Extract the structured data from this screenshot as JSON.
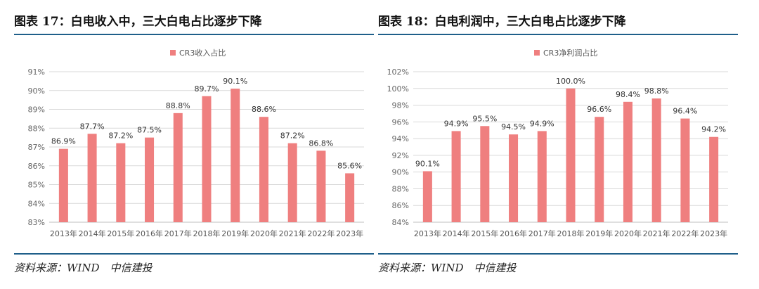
{
  "chart_data": [
    {
      "type": "bar",
      "figure_title": "图表 17：白电收入中，三大白电占比逐步下降",
      "legend": "CR3收入占比",
      "categories": [
        "2013年",
        "2014年",
        "2015年",
        "2016年",
        "2017年",
        "2018年",
        "2019年",
        "2020年",
        "2021年",
        "2022年",
        "2023年"
      ],
      "values": [
        86.9,
        87.7,
        87.2,
        87.5,
        88.8,
        89.7,
        90.1,
        88.6,
        87.2,
        86.8,
        85.6
      ],
      "value_labels": [
        "86.9%",
        "87.7%",
        "87.2%",
        "87.5%",
        "88.8%",
        "89.7%",
        "90.1%",
        "88.6%",
        "87.2%",
        "86.8%",
        "85.6%"
      ],
      "yticks": [
        83,
        84,
        85,
        86,
        87,
        88,
        89,
        90,
        91
      ],
      "ytick_labels": [
        "83%",
        "84%",
        "85%",
        "86%",
        "87%",
        "88%",
        "89%",
        "90%",
        "91%"
      ],
      "ylim": [
        83,
        91
      ],
      "source": "资料来源：WIND　中信建投",
      "bar_color": "#ef7f7f"
    },
    {
      "type": "bar",
      "figure_title": "图表 18：白电利润中，三大白电占比逐步下降",
      "legend": "CR3净利润占比",
      "categories": [
        "2013年",
        "2014年",
        "2015年",
        "2016年",
        "2017年",
        "2018年",
        "2019年",
        "2020年",
        "2021年",
        "2022年",
        "2023年"
      ],
      "values": [
        90.1,
        94.9,
        95.5,
        94.5,
        94.9,
        100.0,
        96.6,
        98.4,
        98.8,
        96.4,
        94.2
      ],
      "value_labels": [
        "90.1%",
        "94.9%",
        "95.5%",
        "94.5%",
        "94.9%",
        "100.0%",
        "96.6%",
        "98.4%",
        "98.8%",
        "96.4%",
        "94.2%"
      ],
      "yticks": [
        84,
        86,
        88,
        90,
        92,
        94,
        96,
        98,
        100,
        102
      ],
      "ytick_labels": [
        "84%",
        "86%",
        "88%",
        "90%",
        "92%",
        "94%",
        "96%",
        "98%",
        "100%",
        "102%"
      ],
      "ylim": [
        84,
        102
      ],
      "source": "资料来源：WIND　中信建投",
      "bar_color": "#ef7f7f"
    }
  ]
}
